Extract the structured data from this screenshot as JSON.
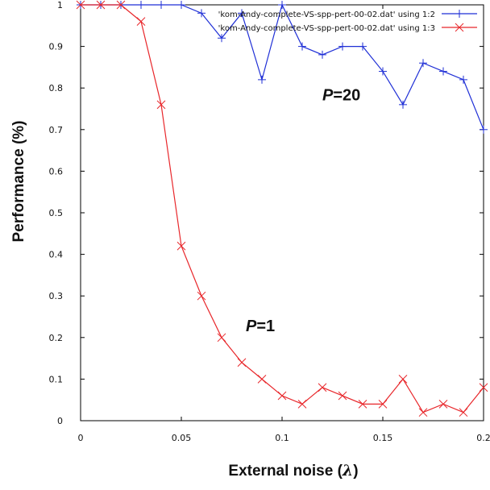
{
  "chart_data": {
    "type": "line",
    "xlabel": "External noise (",
    "xlabel_symbol": "λ",
    "xlabel_close": ")",
    "ylabel": "Performance (%)",
    "xlim": [
      0,
      0.2
    ],
    "ylim": [
      0,
      1
    ],
    "x_ticks": [
      0,
      0.05,
      0.1,
      0.15,
      0.2
    ],
    "x_tick_labels": [
      "0",
      "0.05",
      "0.1",
      "0.15",
      "0.2"
    ],
    "y_ticks": [
      0,
      0.1,
      0.2,
      0.3,
      0.4,
      0.5,
      0.6,
      0.7,
      0.8,
      0.9,
      1
    ],
    "y_tick_labels": [
      "0",
      "0.1",
      "0.2",
      "0.3",
      "0.4",
      "0.5",
      "0.6",
      "0.7",
      "0.8",
      "0.9",
      "1"
    ],
    "grid": false,
    "legend_position": "top-right",
    "x": [
      0,
      0.01,
      0.02,
      0.03,
      0.04,
      0.05,
      0.06,
      0.07,
      0.08,
      0.09,
      0.1,
      0.11,
      0.12,
      0.13,
      0.14,
      0.15,
      0.16,
      0.17,
      0.18,
      0.19,
      0.2
    ],
    "series": [
      {
        "name": "'kom-Andy-complete-VS-spp-pert-00-02.dat' using 1:2",
        "color": "#1f2fd6",
        "marker": "plus",
        "values": [
          1,
          1,
          1,
          1,
          1,
          1,
          0.98,
          0.92,
          0.98,
          0.82,
          1,
          0.9,
          0.88,
          0.9,
          0.9,
          0.84,
          0.76,
          0.86,
          0.84,
          0.82,
          0.7
        ]
      },
      {
        "name": "'kom-Andy-complete-VS-spp-pert-00-02.dat' using 1:3",
        "color": "#e8262a",
        "marker": "x",
        "values": [
          1,
          1,
          1,
          0.96,
          0.76,
          0.42,
          0.3,
          0.2,
          0.14,
          0.1,
          0.06,
          0.04,
          0.08,
          0.06,
          0.04,
          0.04,
          0.1,
          0.02,
          0.04,
          0.02,
          0.08
        ]
      }
    ],
    "annotations": [
      {
        "label_italic": "P",
        "label_rest": "=20",
        "x": 0.12,
        "y": 0.77
      },
      {
        "label_italic": "P",
        "label_rest": "=1",
        "x": 0.082,
        "y": 0.215
      }
    ]
  }
}
